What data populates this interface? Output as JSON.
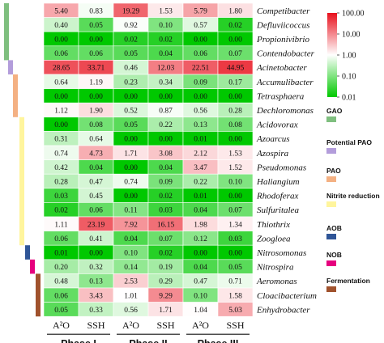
{
  "chart_data": {
    "type": "heatmap",
    "color_scale": {
      "type": "log",
      "min": 0.01,
      "max": 100,
      "ticks": [
        "100.00",
        "10.00",
        "1.00",
        "0.10",
        "0.01"
      ],
      "colors": {
        "high": "#e8101c",
        "mid": "#ffffff",
        "low": "#00c800"
      }
    },
    "columns": [
      "A²O",
      "SSH",
      "A²O",
      "SSH",
      "A²O",
      "SSH"
    ],
    "phases": [
      "Phase I",
      "Phase II",
      "Phase III"
    ],
    "rows": [
      {
        "genus": "Competibacter",
        "values": [
          "5.40",
          "0.83",
          "19.29",
          "1.53",
          "5.79",
          "1.80"
        ]
      },
      {
        "genus": "Defluviicoccus",
        "values": [
          "0.40",
          "0.05",
          "0.92",
          "0.10",
          "0.57",
          "0.02"
        ]
      },
      {
        "genus": "Propionivibrio",
        "values": [
          "0.00",
          "0.00",
          "0.02",
          "0.02",
          "0.00",
          "0.00"
        ]
      },
      {
        "genus": "Contendobacter",
        "values": [
          "0.06",
          "0.06",
          "0.05",
          "0.04",
          "0.06",
          "0.07"
        ]
      },
      {
        "genus": "Acinetobacter",
        "values": [
          "28.65",
          "33.71",
          "0.46",
          "12.03",
          "22.51",
          "44.95"
        ]
      },
      {
        "genus": "Accumulibacter",
        "values": [
          "0.64",
          "1.19",
          "0.23",
          "0.34",
          "0.09",
          "0.17"
        ]
      },
      {
        "genus": "Tetrasphaera",
        "values": [
          "0.00",
          "0.00",
          "0.00",
          "0.00",
          "0.00",
          "0.00"
        ]
      },
      {
        "genus": "Dechloromonas",
        "values": [
          "1.12",
          "1.90",
          "0.52",
          "0.87",
          "0.56",
          "0.28"
        ]
      },
      {
        "genus": "Acidovorax",
        "values": [
          "0.00",
          "0.08",
          "0.05",
          "0.22",
          "0.13",
          "0.08"
        ]
      },
      {
        "genus": "Azoarcus",
        "values": [
          "0.31",
          "0.64",
          "0.00",
          "0.00",
          "0.01",
          "0.00"
        ]
      },
      {
        "genus": "Azospira",
        "values": [
          "0.74",
          "4.73",
          "1.71",
          "3.08",
          "2.12",
          "1.53"
        ]
      },
      {
        "genus": "Pseudomonas",
        "values": [
          "0.42",
          "0.04",
          "0.00",
          "0.04",
          "3.47",
          "1.52"
        ]
      },
      {
        "genus": "Haliangium",
        "values": [
          "0.28",
          "0.47",
          "0.74",
          "0.09",
          "0.22",
          "0.10"
        ]
      },
      {
        "genus": "Rhodoferax",
        "values": [
          "0.03",
          "0.45",
          "0.00",
          "0.02",
          "0.01",
          "0.00"
        ]
      },
      {
        "genus": "Sulfuritalea",
        "values": [
          "0.02",
          "0.06",
          "0.11",
          "0.03",
          "0.04",
          "0.07"
        ]
      },
      {
        "genus": "Thiothrix",
        "values": [
          "1.11",
          "23.19",
          "7.92",
          "16.15",
          "1.98",
          "1.34"
        ]
      },
      {
        "genus": "Zoogloea",
        "values": [
          "0.06",
          "0.41",
          "0.04",
          "0.07",
          "0.12",
          "0.03"
        ]
      },
      {
        "genus": "Nitrosomonas",
        "values": [
          "0.01",
          "0.00",
          "0.10",
          "0.02",
          "0.00",
          "0.00"
        ]
      },
      {
        "genus": "Nitrospira",
        "values": [
          "0.20",
          "0.32",
          "0.14",
          "0.19",
          "0.04",
          "0.05"
        ]
      },
      {
        "genus": "Aeromonas",
        "values": [
          "0.48",
          "0.13",
          "2.53",
          "0.29",
          "0.47",
          "0.71"
        ]
      },
      {
        "genus": "Cloacibacterium",
        "values": [
          "0.06",
          "3.43",
          "1.01",
          "9.29",
          "0.10",
          "1.58"
        ]
      },
      {
        "genus": "Enhydrobacter",
        "values": [
          "0.05",
          "0.33",
          "0.56",
          "1.71",
          "1.04",
          "5.03"
        ]
      }
    ],
    "groups": [
      {
        "name": "GAO",
        "color": "#7fbf7f",
        "rows": [
          0,
          3
        ]
      },
      {
        "name": "Potential PAO",
        "color": "#b39ddb",
        "rows": [
          4,
          4
        ]
      },
      {
        "name": "PAO",
        "color": "#f4b183",
        "rows": [
          5,
          7
        ]
      },
      {
        "name": "Nitrite reduction",
        "color": "#fff59d",
        "rows": [
          8,
          16
        ]
      },
      {
        "name": "AOB",
        "color": "#2f5597",
        "rows": [
          17,
          17
        ]
      },
      {
        "name": "NOB",
        "color": "#e6007e",
        "rows": [
          18,
          18
        ]
      },
      {
        "name": "Fermentation",
        "color": "#a0522d",
        "rows": [
          19,
          21
        ]
      }
    ]
  }
}
